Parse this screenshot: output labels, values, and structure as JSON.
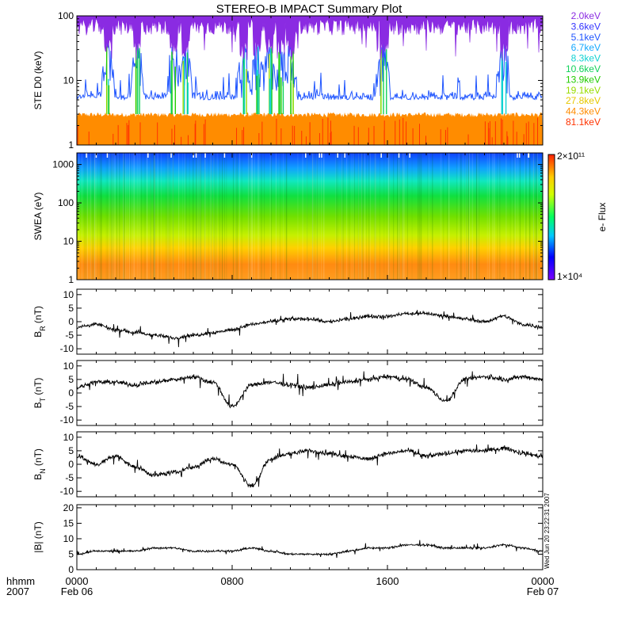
{
  "title": "STEREO-B IMPACT Summary Plot",
  "footer": {
    "line1": "hhmm",
    "line2": "2007"
  },
  "timestamp": "Wed Jun 20 23:22:31 2007",
  "time_axis": {
    "ticks": [
      {
        "t": 0,
        "label": "0000",
        "sub": "Feb 06"
      },
      {
        "t": 8,
        "label": "0800",
        "sub": ""
      },
      {
        "t": 16,
        "label": "1600",
        "sub": ""
      },
      {
        "t": 24,
        "label": "0000",
        "sub": "Feb 07"
      }
    ],
    "range": [
      0,
      24
    ],
    "unit": "hours"
  },
  "chart_data": [
    {
      "id": "ste",
      "type": "line",
      "ylabel": "STE D0 (keV)",
      "yscale": "log",
      "ylim": [
        1,
        100
      ],
      "yticks": [
        1,
        10,
        100
      ],
      "ytick_labels": [
        "1",
        "10",
        "100"
      ],
      "legend_placement": "right",
      "series": [
        {
          "name": "2.0keV",
          "color": "#8a2be2"
        },
        {
          "name": "3.6keV",
          "color": "#3333ff"
        },
        {
          "name": "5.1keV",
          "color": "#1f55ff"
        },
        {
          "name": "6.7keV",
          "color": "#14a8ff"
        },
        {
          "name": "8.3keV",
          "color": "#11d2d2"
        },
        {
          "name": "10.6keV",
          "color": "#11d25a"
        },
        {
          "name": "13.9keV",
          "color": "#22cc00"
        },
        {
          "name": "19.1keV",
          "color": "#99dd00"
        },
        {
          "name": "27.8keV",
          "color": "#e6c800"
        },
        {
          "name": "44.3keV",
          "color": "#ff8c00"
        },
        {
          "name": "81.1keV",
          "color": "#ff3300"
        }
      ]
    },
    {
      "id": "swea",
      "type": "heatmap",
      "ylabel": "SWEA (eV)",
      "yscale": "log",
      "ylim": [
        1,
        2000
      ],
      "yticks": [
        1,
        10,
        100,
        1000
      ],
      "ytick_labels": [
        "1",
        "10",
        "100",
        "1000"
      ],
      "colorbar": {
        "label": "e- Flux",
        "max": "2×10¹¹",
        "min": "1×10⁴",
        "scale": "log"
      }
    },
    {
      "id": "br",
      "type": "line",
      "ylabel": "BR (nT)",
      "ylim": [
        -12,
        12
      ],
      "yticks": [
        -10,
        -5,
        0,
        5,
        10
      ],
      "x": [
        0,
        1,
        2,
        3,
        4,
        5,
        6,
        7,
        8,
        9,
        10,
        11,
        12,
        13,
        14,
        15,
        16,
        17,
        18,
        19,
        20,
        21,
        22,
        23,
        24
      ],
      "values": [
        -2,
        -1,
        -3,
        -4,
        -5,
        -6,
        -5,
        -4,
        -3,
        -1,
        0,
        1,
        1,
        0,
        1,
        2,
        2,
        3,
        3,
        2,
        1,
        0,
        2,
        -1,
        -2
      ]
    },
    {
      "id": "bt",
      "type": "line",
      "ylabel": "BT (nT)",
      "ylim": [
        -12,
        12
      ],
      "yticks": [
        -10,
        -5,
        0,
        5,
        10
      ],
      "x": [
        0,
        1,
        2,
        3,
        4,
        5,
        6,
        7,
        8,
        9,
        10,
        11,
        12,
        13,
        14,
        15,
        16,
        17,
        18,
        19,
        20,
        21,
        22,
        23,
        24
      ],
      "values": [
        2,
        4,
        4,
        3,
        4,
        5,
        6,
        4,
        -5,
        3,
        4,
        3,
        2,
        3,
        4,
        5,
        6,
        5,
        2,
        -3,
        5,
        6,
        5,
        6,
        5
      ]
    },
    {
      "id": "bn",
      "type": "line",
      "ylabel": "BN (nT)",
      "ylim": [
        -12,
        12
      ],
      "yticks": [
        -10,
        -5,
        0,
        5,
        10
      ],
      "x": [
        0,
        1,
        2,
        3,
        4,
        5,
        6,
        7,
        8,
        9,
        10,
        11,
        12,
        13,
        14,
        15,
        16,
        17,
        18,
        19,
        20,
        21,
        22,
        23,
        24
      ],
      "values": [
        3,
        0,
        3,
        -1,
        -4,
        -3,
        -1,
        2,
        0,
        -8,
        2,
        4,
        5,
        4,
        3,
        2,
        4,
        5,
        3,
        4,
        5,
        5,
        6,
        4,
        3
      ]
    },
    {
      "id": "bmag",
      "type": "line",
      "ylabel": "|B| (nT)",
      "ylim": [
        0,
        21
      ],
      "yticks": [
        0,
        5,
        10,
        15,
        20
      ],
      "x": [
        0,
        1,
        2,
        3,
        4,
        5,
        6,
        7,
        8,
        9,
        10,
        11,
        12,
        13,
        14,
        15,
        16,
        17,
        18,
        19,
        20,
        21,
        22,
        23,
        24
      ],
      "values": [
        5,
        6,
        6,
        6,
        7,
        7,
        6,
        6,
        6,
        7,
        6,
        5,
        5,
        5,
        6,
        7,
        7,
        8,
        8,
        7,
        7,
        7,
        8,
        7,
        6
      ]
    }
  ]
}
